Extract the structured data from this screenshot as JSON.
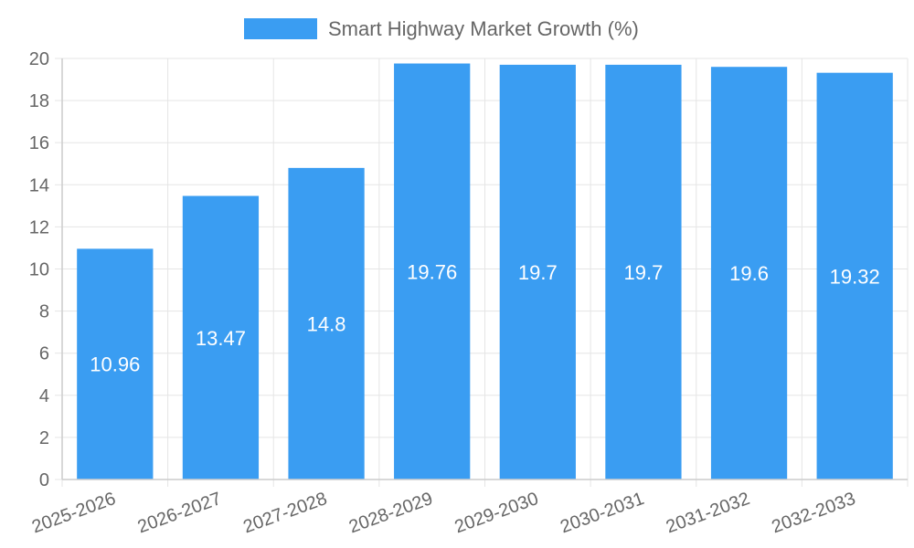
{
  "chart_data": {
    "type": "bar",
    "categories": [
      "2025-2026",
      "2026-2027",
      "2027-2028",
      "2028-2029",
      "2029-2030",
      "2030-2031",
      "2031-2032",
      "2032-2033"
    ],
    "series": [
      {
        "name": "Smart Highway Market Growth (%)",
        "values": [
          10.96,
          13.47,
          14.8,
          19.76,
          19.7,
          19.7,
          19.6,
          19.32
        ],
        "color": "#3a9df2"
      }
    ],
    "data_labels": [
      "10.96",
      "13.47",
      "14.8",
      "19.76",
      "19.7",
      "19.7",
      "19.6",
      "19.32"
    ],
    "y_ticks": [
      "0",
      "2",
      "4",
      "6",
      "8",
      "10",
      "12",
      "14",
      "16",
      "18",
      "20"
    ],
    "ylim": [
      0,
      20
    ],
    "grid": true,
    "legend_position": "top-center"
  }
}
